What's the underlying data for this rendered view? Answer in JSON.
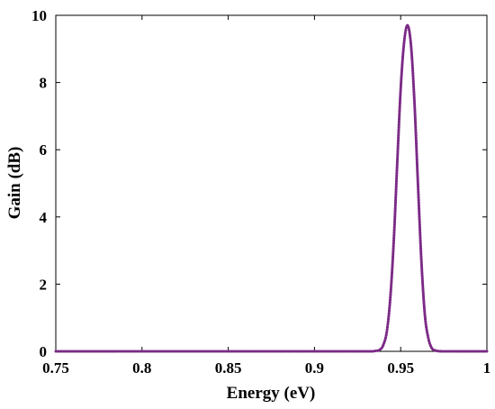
{
  "chart_data": {
    "type": "line",
    "title": "",
    "xlabel": "Energy (eV)",
    "ylabel": "Gain (dB)",
    "xlim": [
      0.75,
      1.0
    ],
    "ylim": [
      0,
      10
    ],
    "x_ticks": [
      "0.75",
      "0.8",
      "0.85",
      "0.9",
      "0.95",
      "1"
    ],
    "y_ticks": [
      "0",
      "2",
      "4",
      "6",
      "8",
      "10"
    ],
    "grid": false,
    "legend": "none",
    "series": [
      {
        "color": "#7b2a86",
        "line_style": "dotted",
        "x": [
          0.75,
          0.8,
          0.85,
          0.9,
          0.93,
          0.935,
          0.938,
          0.94,
          0.942,
          0.944,
          0.946,
          0.948,
          0.95,
          0.952,
          0.954,
          0.956,
          0.958,
          0.96,
          0.962,
          0.964,
          0.966,
          0.968,
          0.97,
          0.975,
          1.0
        ],
        "y": [
          0,
          0,
          0,
          0,
          0,
          0.01,
          0.05,
          0.2,
          0.6,
          1.6,
          3.3,
          5.6,
          7.8,
          9.2,
          9.7,
          9.1,
          7.4,
          5.0,
          2.7,
          1.1,
          0.4,
          0.1,
          0.03,
          0,
          0
        ]
      }
    ]
  }
}
